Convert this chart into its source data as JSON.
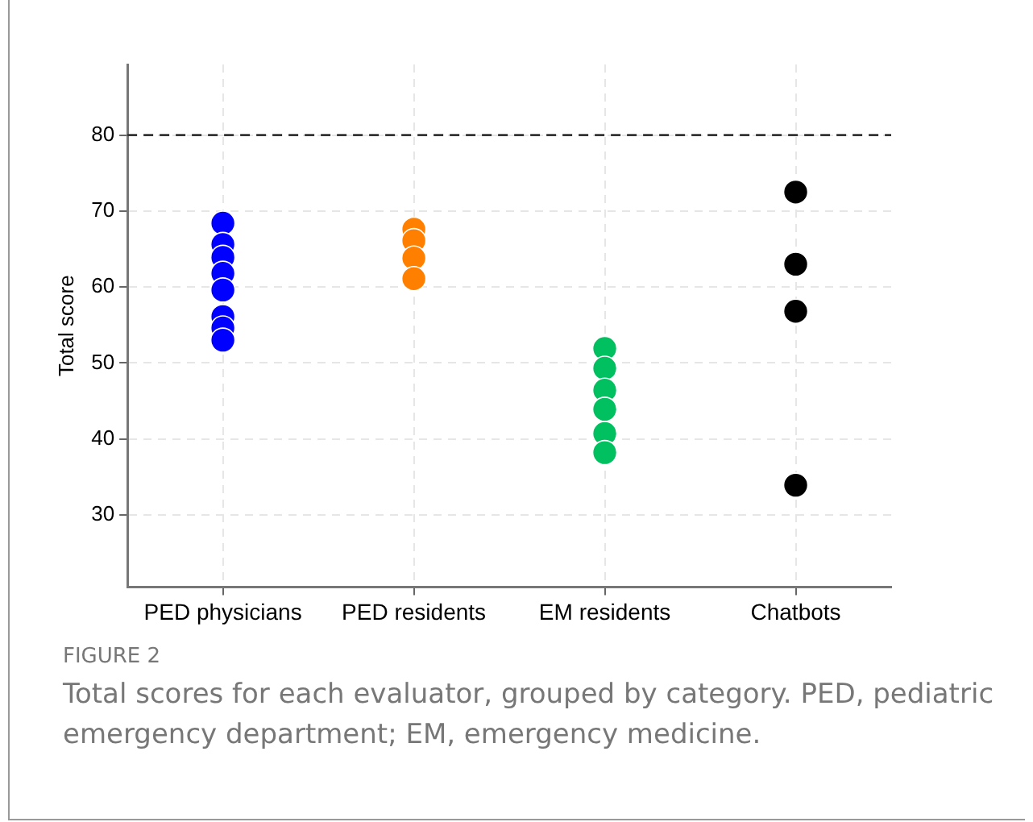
{
  "chart_data": {
    "type": "scatter",
    "ylabel": "Total score",
    "categories": [
      "PED physicians",
      "PED residents",
      "EM residents",
      "Chatbots"
    ],
    "series": [
      {
        "color": "#0000ff",
        "x": [
          "PED physicians",
          "PED physicians",
          "PED physicians",
          "PED physicians",
          "PED physicians",
          "PED physicians",
          "PED physicians",
          "PED physicians",
          "PED physicians"
        ],
        "values": [
          68.4,
          65.6,
          63.9,
          null,
          61.8,
          59.6,
          56.1,
          54.6,
          53.0
        ]
      },
      {
        "color": "#ff8000",
        "x": [
          "PED residents",
          "PED residents",
          "PED residents",
          "PED residents",
          "PED residents"
        ],
        "values": [
          67.6,
          66.1,
          63.8,
          null,
          61.1
        ]
      },
      {
        "color": "#00c060",
        "x": [
          "EM residents",
          "EM residents",
          "EM residents",
          "EM residents",
          "EM residents",
          "EM residents"
        ],
        "values": [
          51.9,
          49.3,
          46.4,
          43.9,
          40.7,
          38.2
        ]
      },
      {
        "color": "#000000",
        "x": [
          "Chatbots",
          "Chatbots",
          "Chatbots",
          "Chatbots"
        ],
        "values": [
          72.5,
          63.0,
          56.8,
          33.9
        ]
      }
    ],
    "ylim": [
      20.5,
      89.3
    ],
    "yticks": [
      30,
      40,
      50,
      60,
      70,
      80
    ],
    "grid": true,
    "legend": false,
    "marker": "circle",
    "ref_lines": [
      {
        "axis": "y",
        "value": 80,
        "color": "#333333",
        "line_style": "dashed"
      }
    ],
    "annotations": [
      "FIGURE 2",
      "Total scores for each evaluator, grouped by category. PED, pediatric emergency department; EM, emergency medicine."
    ]
  }
}
